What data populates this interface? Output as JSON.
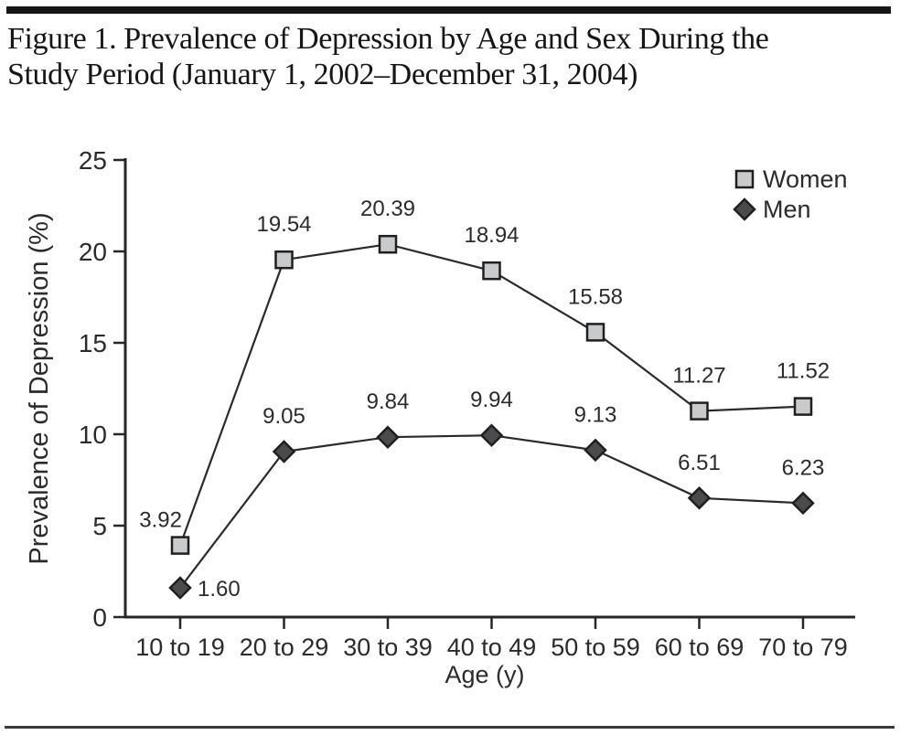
{
  "figure": {
    "title_lines": [
      "Figure 1. Prevalence of Depression by Age and Sex During the",
      "Study Period (January 1, 2002–December 31, 2004)"
    ]
  },
  "chart_data": {
    "type": "line",
    "title": "Figure 1. Prevalence of Depression by Age and Sex During the Study Period (January 1, 2002–December 31, 2004)",
    "categories": [
      "10 to 19",
      "20 to 29",
      "30 to 39",
      "40 to 49",
      "50 to 59",
      "60 to 69",
      "70 to 79"
    ],
    "series": [
      {
        "name": "Women",
        "marker": "square",
        "marker_fill": "#c9cacb",
        "values": [
          3.92,
          19.54,
          20.39,
          18.94,
          15.58,
          11.27,
          11.52
        ],
        "value_labels": [
          "3.92",
          "19.54",
          "20.39",
          "18.94",
          "15.58",
          "11.27",
          "11.52"
        ],
        "label_side": [
          "left",
          "above",
          "above",
          "above",
          "above",
          "above",
          "above"
        ]
      },
      {
        "name": "Men",
        "marker": "diamond",
        "marker_fill": "#4b4b4d",
        "values": [
          1.6,
          9.05,
          9.84,
          9.94,
          9.13,
          6.51,
          6.23
        ],
        "value_labels": [
          "1.60",
          "9.05",
          "9.84",
          "9.94",
          "9.13",
          "6.51",
          "6.23"
        ],
        "label_side": [
          "right",
          "above",
          "above",
          "above",
          "above",
          "above",
          "above"
        ]
      }
    ],
    "xlabel": "Age (y)",
    "ylabel": "Prevalence of Depression (%)",
    "ylim": [
      0,
      25
    ],
    "yticks": [
      0,
      5,
      10,
      15,
      20,
      25
    ],
    "grid": false,
    "legend": {
      "position": "top-right",
      "entries": [
        "Women",
        "Men"
      ]
    },
    "colors": {
      "axis": "#262626",
      "series_line": "#2a2a2a",
      "text": "#2b2b2b",
      "marker_stroke": "#1f1f1f",
      "women_fill": "#c9cacb",
      "men_fill": "#4b4b4d"
    }
  }
}
